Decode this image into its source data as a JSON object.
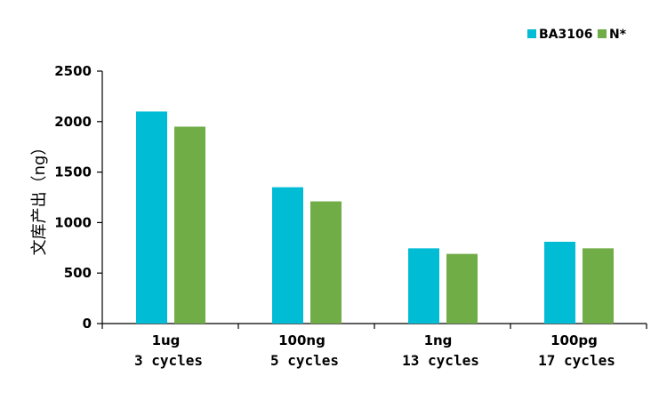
{
  "chart_data": {
    "type": "bar",
    "title": "",
    "xlabel": "",
    "ylabel": "文库产出（ng）",
    "ylim": [
      0,
      2500
    ],
    "yticks": [
      0,
      500,
      1000,
      1500,
      2000,
      2500
    ],
    "grid": false,
    "legend_position": "top-right",
    "categories": [
      {
        "line1": "1ug",
        "line2": "3 cycles"
      },
      {
        "line1": "100ng",
        "line2": "5 cycles"
      },
      {
        "line1": "1ng",
        "line2": "13 cycles"
      },
      {
        "line1": "100pg",
        "line2": "17 cycles"
      }
    ],
    "series": [
      {
        "name": "BA3106",
        "color": "#00BCD4",
        "values": [
          2100,
          1350,
          745,
          810
        ]
      },
      {
        "name": "N*",
        "color": "#70AD47",
        "values": [
          1950,
          1210,
          690,
          745
        ]
      }
    ]
  }
}
